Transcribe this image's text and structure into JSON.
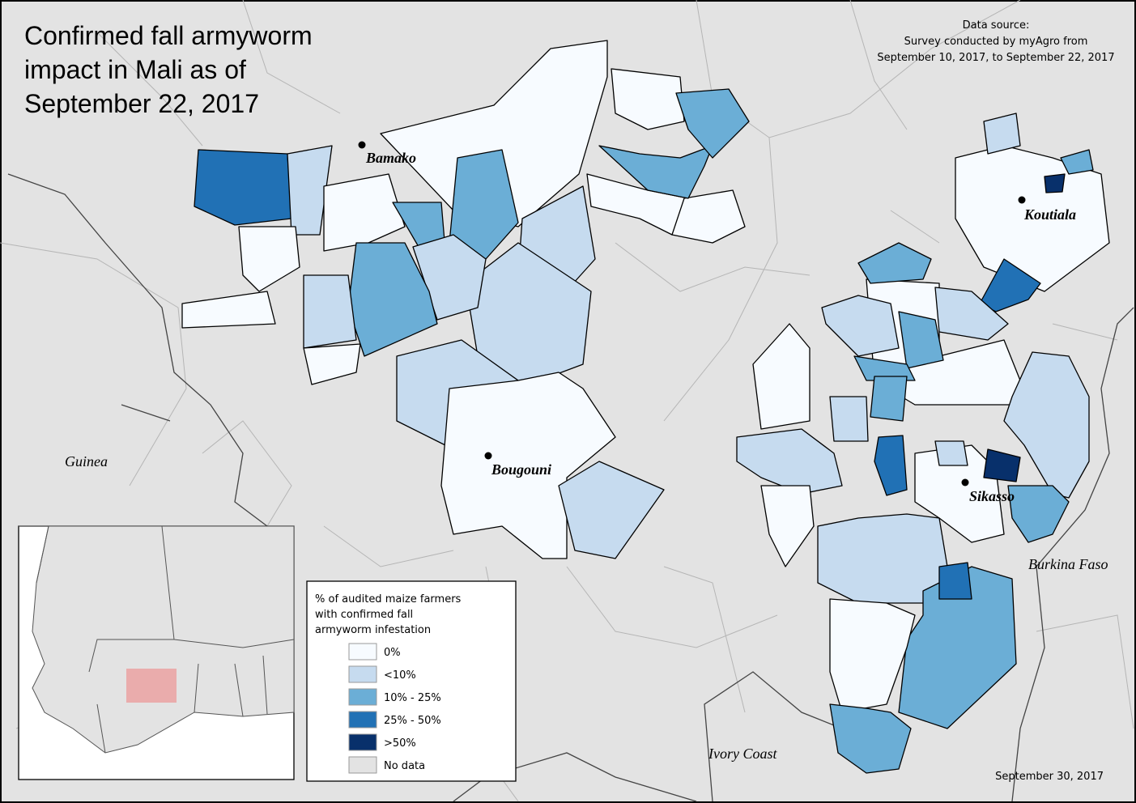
{
  "header": {
    "title_lines": [
      "Confirmed fall armyworm",
      "impact in Mali as of",
      "September 22, 2017"
    ]
  },
  "source": {
    "lines": [
      "Data source:",
      "Survey conducted by myAgro from",
      "September 10, 2017, to September 22, 2017"
    ]
  },
  "cities": [
    "Bamako",
    "Koutiala",
    "Bougouni",
    "Sikasso"
  ],
  "countries": [
    "Guinea",
    "Burkina Faso",
    "Ivory Coast"
  ],
  "legend": {
    "title_lines": [
      "% of audited maize farmers",
      "with confirmed fall",
      "armyworm infestation"
    ],
    "items": [
      {
        "label": "0%",
        "color": "#f7fbff"
      },
      {
        "label": "<10%",
        "color": "#c6dbef"
      },
      {
        "label": "10% - 25%",
        "color": "#6baed6"
      },
      {
        "label": "25% - 50%",
        "color": "#2171b5"
      },
      {
        "label": ">50%",
        "color": "#08306b"
      },
      {
        "label": "No data",
        "color": "#e3e3e3"
      }
    ]
  },
  "date": "September 30, 2017"
}
